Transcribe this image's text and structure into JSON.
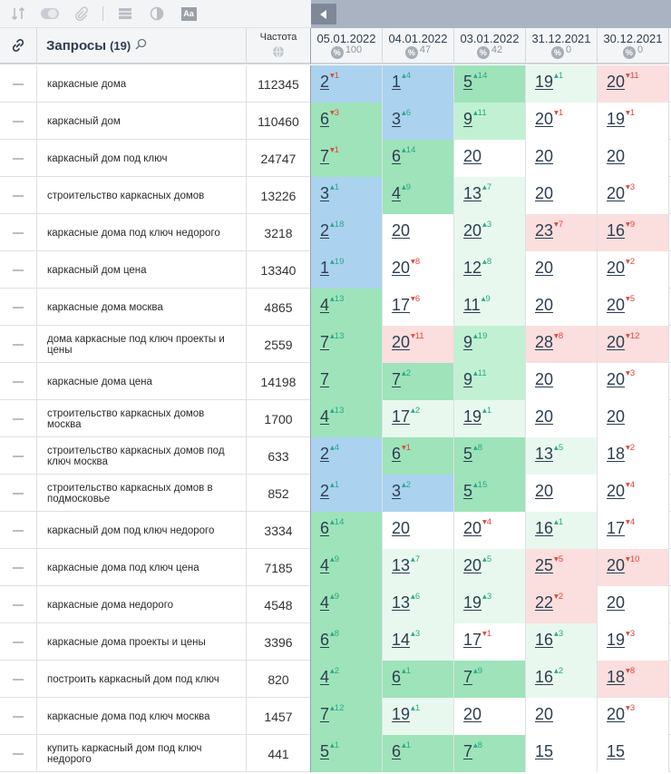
{
  "toolbar": {
    "icons": [
      "sort-icon",
      "toggle-icon",
      "paperclip-icon",
      "grid-icon",
      "contrast-icon",
      "font-size-icon"
    ],
    "font_label": "Aa"
  },
  "header": {
    "queries_title": "Запросы",
    "queries_count": "(19)",
    "frequency_label": "Частота",
    "dates": [
      {
        "date": "05.01.2022",
        "pct": "100"
      },
      {
        "date": "04.01.2022",
        "pct": "47"
      },
      {
        "date": "03.01.2022",
        "pct": "42"
      },
      {
        "date": "31.12.2021",
        "pct": "0"
      },
      {
        "date": "30.12.2021",
        "pct": "0"
      }
    ]
  },
  "colors": {
    "blue": "#abd2ef",
    "green": "#9ee3b9",
    "light_green": "#c1f0d3",
    "pale_green": "#e8f8ee",
    "red": "#fbdede",
    "up": "#2ba88a",
    "down": "#e2463c"
  },
  "rows": [
    {
      "query": "каркасные дома",
      "freq": "112345",
      "pos": [
        {
          "v": "2",
          "d": "1",
          "t": "down",
          "bg": "blue"
        },
        {
          "v": "1",
          "d": "4",
          "t": "up",
          "bg": "blue"
        },
        {
          "v": "5",
          "d": "14",
          "t": "up",
          "bg": "green"
        },
        {
          "v": "19",
          "d": "1",
          "t": "up",
          "bg": "pgreen"
        },
        {
          "v": "20",
          "d": "11",
          "t": "down",
          "bg": "red"
        }
      ]
    },
    {
      "query": "каркасный дом",
      "freq": "110460",
      "pos": [
        {
          "v": "6",
          "d": "3",
          "t": "down",
          "bg": "green"
        },
        {
          "v": "3",
          "d": "6",
          "t": "up",
          "bg": "blue"
        },
        {
          "v": "9",
          "d": "11",
          "t": "up",
          "bg": "lgreen"
        },
        {
          "v": "20",
          "d": "1",
          "t": "down",
          "bg": "white"
        },
        {
          "v": "19",
          "d": "1",
          "t": "down",
          "bg": "white"
        }
      ]
    },
    {
      "query": "каркасный дом под ключ",
      "freq": "24747",
      "pos": [
        {
          "v": "7",
          "d": "1",
          "t": "down",
          "bg": "green"
        },
        {
          "v": "6",
          "d": "14",
          "t": "up",
          "bg": "green"
        },
        {
          "v": "20",
          "d": "",
          "t": "",
          "bg": "white"
        },
        {
          "v": "20",
          "d": "",
          "t": "",
          "bg": "white"
        },
        {
          "v": "20",
          "d": "",
          "t": "",
          "bg": "white"
        }
      ]
    },
    {
      "query": "строительство каркасных домов",
      "freq": "13226",
      "pos": [
        {
          "v": "3",
          "d": "1",
          "t": "up",
          "bg": "blue"
        },
        {
          "v": "4",
          "d": "9",
          "t": "up",
          "bg": "green"
        },
        {
          "v": "13",
          "d": "7",
          "t": "up",
          "bg": "pgreen"
        },
        {
          "v": "20",
          "d": "",
          "t": "",
          "bg": "white"
        },
        {
          "v": "20",
          "d": "3",
          "t": "down",
          "bg": "white"
        }
      ]
    },
    {
      "query": "каркасные дома под ключ недорого",
      "freq": "3218",
      "pos": [
        {
          "v": "2",
          "d": "18",
          "t": "up",
          "bg": "blue"
        },
        {
          "v": "20",
          "d": "",
          "t": "",
          "bg": "white"
        },
        {
          "v": "20",
          "d": "3",
          "t": "up",
          "bg": "pgreen"
        },
        {
          "v": "23",
          "d": "7",
          "t": "down",
          "bg": "red"
        },
        {
          "v": "16",
          "d": "9",
          "t": "down",
          "bg": "red"
        }
      ]
    },
    {
      "query": "каркасный дом цена",
      "freq": "13340",
      "pos": [
        {
          "v": "1",
          "d": "19",
          "t": "up",
          "bg": "blue"
        },
        {
          "v": "20",
          "d": "8",
          "t": "down",
          "bg": "white"
        },
        {
          "v": "12",
          "d": "8",
          "t": "up",
          "bg": "pgreen"
        },
        {
          "v": "20",
          "d": "",
          "t": "",
          "bg": "white"
        },
        {
          "v": "20",
          "d": "2",
          "t": "down",
          "bg": "white"
        }
      ]
    },
    {
      "query": "каркасные дома москва",
      "freq": "4865",
      "pos": [
        {
          "v": "4",
          "d": "13",
          "t": "up",
          "bg": "green"
        },
        {
          "v": "17",
          "d": "6",
          "t": "down",
          "bg": "white"
        },
        {
          "v": "11",
          "d": "9",
          "t": "up",
          "bg": "pgreen"
        },
        {
          "v": "20",
          "d": "",
          "t": "",
          "bg": "white"
        },
        {
          "v": "20",
          "d": "5",
          "t": "down",
          "bg": "white"
        }
      ]
    },
    {
      "query": "дома каркасные под ключ проекты и цены",
      "freq": "2559",
      "pos": [
        {
          "v": "7",
          "d": "13",
          "t": "up",
          "bg": "green"
        },
        {
          "v": "20",
          "d": "11",
          "t": "down",
          "bg": "red"
        },
        {
          "v": "9",
          "d": "19",
          "t": "up",
          "bg": "lgreen"
        },
        {
          "v": "28",
          "d": "8",
          "t": "down",
          "bg": "red"
        },
        {
          "v": "20",
          "d": "12",
          "t": "down",
          "bg": "red"
        }
      ]
    },
    {
      "query": "каркасные дома цена",
      "freq": "14198",
      "pos": [
        {
          "v": "7",
          "d": "",
          "t": "",
          "bg": "green"
        },
        {
          "v": "7",
          "d": "2",
          "t": "up",
          "bg": "green"
        },
        {
          "v": "9",
          "d": "11",
          "t": "up",
          "bg": "lgreen"
        },
        {
          "v": "20",
          "d": "",
          "t": "",
          "bg": "white"
        },
        {
          "v": "20",
          "d": "3",
          "t": "down",
          "bg": "white"
        }
      ]
    },
    {
      "query": "строительство каркасных домов москва",
      "freq": "1700",
      "pos": [
        {
          "v": "4",
          "d": "13",
          "t": "up",
          "bg": "green"
        },
        {
          "v": "17",
          "d": "2",
          "t": "up",
          "bg": "pgreen"
        },
        {
          "v": "19",
          "d": "1",
          "t": "up",
          "bg": "pgreen"
        },
        {
          "v": "20",
          "d": "",
          "t": "",
          "bg": "white"
        },
        {
          "v": "20",
          "d": "",
          "t": "",
          "bg": "white"
        }
      ]
    },
    {
      "query": "строительство каркасных домов под ключ москва",
      "freq": "633",
      "pos": [
        {
          "v": "2",
          "d": "4",
          "t": "up",
          "bg": "blue"
        },
        {
          "v": "6",
          "d": "1",
          "t": "down",
          "bg": "green"
        },
        {
          "v": "5",
          "d": "8",
          "t": "up",
          "bg": "green"
        },
        {
          "v": "13",
          "d": "5",
          "t": "up",
          "bg": "pgreen"
        },
        {
          "v": "18",
          "d": "2",
          "t": "down",
          "bg": "white"
        }
      ]
    },
    {
      "query": "строительство каркасных домов в подмосковье",
      "freq": "852",
      "pos": [
        {
          "v": "2",
          "d": "1",
          "t": "up",
          "bg": "blue"
        },
        {
          "v": "3",
          "d": "2",
          "t": "up",
          "bg": "blue"
        },
        {
          "v": "5",
          "d": "15",
          "t": "up",
          "bg": "green"
        },
        {
          "v": "20",
          "d": "",
          "t": "",
          "bg": "white"
        },
        {
          "v": "20",
          "d": "4",
          "t": "down",
          "bg": "white"
        }
      ]
    },
    {
      "query": "каркасный дом под ключ недорого",
      "freq": "3334",
      "pos": [
        {
          "v": "6",
          "d": "14",
          "t": "up",
          "bg": "green"
        },
        {
          "v": "20",
          "d": "",
          "t": "",
          "bg": "white"
        },
        {
          "v": "20",
          "d": "4",
          "t": "down",
          "bg": "white"
        },
        {
          "v": "16",
          "d": "1",
          "t": "up",
          "bg": "pgreen"
        },
        {
          "v": "17",
          "d": "4",
          "t": "down",
          "bg": "white"
        }
      ]
    },
    {
      "query": "каркасные дома под ключ цена",
      "freq": "7185",
      "pos": [
        {
          "v": "4",
          "d": "9",
          "t": "up",
          "bg": "green"
        },
        {
          "v": "13",
          "d": "7",
          "t": "up",
          "bg": "pgreen"
        },
        {
          "v": "20",
          "d": "5",
          "t": "up",
          "bg": "pgreen"
        },
        {
          "v": "25",
          "d": "5",
          "t": "down",
          "bg": "red"
        },
        {
          "v": "20",
          "d": "10",
          "t": "down",
          "bg": "red"
        }
      ]
    },
    {
      "query": "каркасные дома недорого",
      "freq": "4548",
      "pos": [
        {
          "v": "4",
          "d": "9",
          "t": "up",
          "bg": "green"
        },
        {
          "v": "13",
          "d": "6",
          "t": "up",
          "bg": "pgreen"
        },
        {
          "v": "19",
          "d": "3",
          "t": "up",
          "bg": "pgreen"
        },
        {
          "v": "22",
          "d": "2",
          "t": "down",
          "bg": "red"
        },
        {
          "v": "20",
          "d": "",
          "t": "",
          "bg": "white"
        }
      ]
    },
    {
      "query": "каркасные дома проекты и цены",
      "freq": "3396",
      "pos": [
        {
          "v": "6",
          "d": "8",
          "t": "up",
          "bg": "green"
        },
        {
          "v": "14",
          "d": "3",
          "t": "up",
          "bg": "pgreen"
        },
        {
          "v": "17",
          "d": "1",
          "t": "down",
          "bg": "white"
        },
        {
          "v": "16",
          "d": "3",
          "t": "up",
          "bg": "pgreen"
        },
        {
          "v": "19",
          "d": "3",
          "t": "down",
          "bg": "white"
        }
      ]
    },
    {
      "query": "построить каркасный дом под ключ",
      "freq": "820",
      "pos": [
        {
          "v": "4",
          "d": "2",
          "t": "up",
          "bg": "green"
        },
        {
          "v": "6",
          "d": "1",
          "t": "up",
          "bg": "green"
        },
        {
          "v": "7",
          "d": "9",
          "t": "up",
          "bg": "green"
        },
        {
          "v": "16",
          "d": "2",
          "t": "up",
          "bg": "pgreen"
        },
        {
          "v": "18",
          "d": "8",
          "t": "down",
          "bg": "red"
        }
      ]
    },
    {
      "query": "каркасные дома под ключ москва",
      "freq": "1457",
      "pos": [
        {
          "v": "7",
          "d": "12",
          "t": "up",
          "bg": "green"
        },
        {
          "v": "19",
          "d": "1",
          "t": "up",
          "bg": "pgreen"
        },
        {
          "v": "20",
          "d": "",
          "t": "",
          "bg": "white"
        },
        {
          "v": "20",
          "d": "",
          "t": "",
          "bg": "white"
        },
        {
          "v": "20",
          "d": "3",
          "t": "down",
          "bg": "white"
        }
      ]
    },
    {
      "query": "купить каркасный дом под ключ недорого",
      "freq": "441",
      "pos": [
        {
          "v": "5",
          "d": "1",
          "t": "up",
          "bg": "green"
        },
        {
          "v": "6",
          "d": "1",
          "t": "up",
          "bg": "green"
        },
        {
          "v": "7",
          "d": "8",
          "t": "up",
          "bg": "green"
        },
        {
          "v": "15",
          "d": "",
          "t": "",
          "bg": "white"
        },
        {
          "v": "15",
          "d": "",
          "t": "",
          "bg": "white"
        }
      ]
    }
  ]
}
